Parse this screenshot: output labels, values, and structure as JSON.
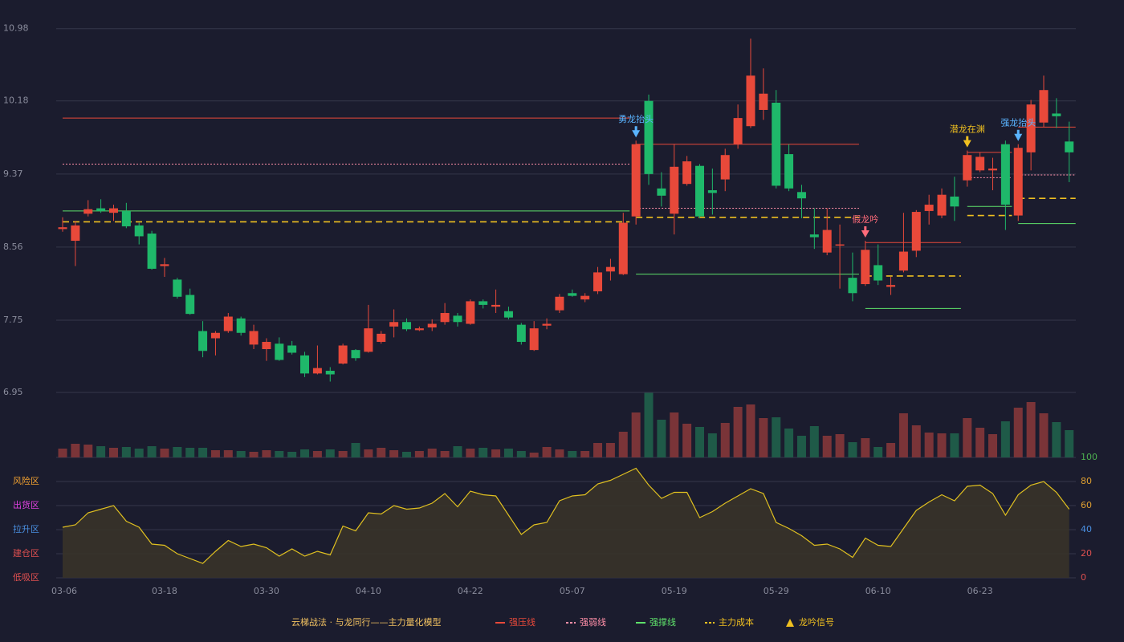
{
  "chart_data": [
    {
      "type": "candlestick",
      "categories": [
        "03-06",
        null,
        null,
        null,
        null,
        null,
        null,
        null,
        "03-18",
        null,
        null,
        null,
        null,
        null,
        null,
        null,
        "03-30",
        null,
        null,
        null,
        null,
        null,
        null,
        null,
        "04-10",
        null,
        null,
        null,
        null,
        null,
        null,
        null,
        "04-22",
        null,
        null,
        null,
        null,
        null,
        null,
        null,
        "05-07",
        null,
        null,
        null,
        null,
        null,
        null,
        null,
        "05-19",
        null,
        null,
        null,
        null,
        null,
        null,
        null,
        "05-29",
        null,
        null,
        null,
        null,
        null,
        null,
        null,
        "06-10",
        null,
        null,
        null,
        null,
        null,
        null,
        null,
        "06-23",
        null,
        null,
        null,
        null,
        null,
        null,
        null
      ],
      "open": [
        8.76,
        8.63,
        8.93,
        8.99,
        8.94,
        8.96,
        8.8,
        8.71,
        8.35,
        8.2,
        8.03,
        7.63,
        7.55,
        7.63,
        7.77,
        7.48,
        7.43,
        7.49,
        7.47,
        7.36,
        7.16,
        7.19,
        7.27,
        7.42,
        7.4,
        7.51,
        7.68,
        7.73,
        7.64,
        7.67,
        7.73,
        7.8,
        7.71,
        7.96,
        7.9,
        7.85,
        7.7,
        7.42,
        7.69,
        7.86,
        8.05,
        7.98,
        8.07,
        8.29,
        8.26,
        8.9,
        10.18,
        9.21,
        8.93,
        9.26,
        9.46,
        9.19,
        9.31,
        9.7,
        9.9,
        10.08,
        10.16,
        9.59,
        9.17,
        8.7,
        8.5,
        8.58,
        8.22,
        8.15,
        8.36,
        8.12,
        8.3,
        8.52,
        8.96,
        8.91,
        9.12,
        9.3,
        9.41,
        9.41,
        9.7,
        8.91,
        9.61,
        9.94,
        10.04,
        9.73
      ],
      "close": [
        8.78,
        8.8,
        8.98,
        8.96,
        8.99,
        8.79,
        8.68,
        8.32,
        8.37,
        8.01,
        7.82,
        7.41,
        7.61,
        7.79,
        7.61,
        7.63,
        7.51,
        7.31,
        7.39,
        7.16,
        7.22,
        7.15,
        7.47,
        7.33,
        7.66,
        7.6,
        7.73,
        7.65,
        7.66,
        7.71,
        7.83,
        7.73,
        7.96,
        7.92,
        7.92,
        7.78,
        7.51,
        7.66,
        7.71,
        8.01,
        8.02,
        8.02,
        8.28,
        8.34,
        8.83,
        9.7,
        9.37,
        9.13,
        9.45,
        9.51,
        8.9,
        9.16,
        9.58,
        9.99,
        10.46,
        10.26,
        9.24,
        9.21,
        9.1,
        8.67,
        8.75,
        8.59,
        8.05,
        8.53,
        8.19,
        8.14,
        8.51,
        8.95,
        9.03,
        9.14,
        9.01,
        9.58,
        9.56,
        9.43,
        9.03,
        9.66,
        10.14,
        10.3,
        10.01,
        9.61
      ],
      "high": [
        8.89,
        8.85,
        9.08,
        9.09,
        9.03,
        9.05,
        8.83,
        8.74,
        8.44,
        8.22,
        8.1,
        7.74,
        7.63,
        7.83,
        7.79,
        7.7,
        7.55,
        7.56,
        7.52,
        7.4,
        7.47,
        7.23,
        7.49,
        7.43,
        7.92,
        7.63,
        7.87,
        7.77,
        7.68,
        7.76,
        7.94,
        7.83,
        7.98,
        7.98,
        8.09,
        7.9,
        7.72,
        7.74,
        7.77,
        8.04,
        8.09,
        8.05,
        8.34,
        8.43,
        8.94,
        9.74,
        10.25,
        9.39,
        9.7,
        9.57,
        9.48,
        9.43,
        9.65,
        10.14,
        10.87,
        10.54,
        10.3,
        9.7,
        9.25,
        8.99,
        8.99,
        8.81,
        8.5,
        8.63,
        8.59,
        8.23,
        8.94,
        8.97,
        9.14,
        9.21,
        9.34,
        9.63,
        9.61,
        9.55,
        9.74,
        9.7,
        10.19,
        10.46,
        10.21,
        9.95
      ],
      "low": [
        8.73,
        8.35,
        8.9,
        8.94,
        8.85,
        8.77,
        8.59,
        8.31,
        8.23,
        7.99,
        7.81,
        7.34,
        7.36,
        7.61,
        7.58,
        7.43,
        7.3,
        7.3,
        7.37,
        7.12,
        7.15,
        7.07,
        7.26,
        7.3,
        7.39,
        7.49,
        7.56,
        7.63,
        7.63,
        7.63,
        7.7,
        7.68,
        7.7,
        7.88,
        7.83,
        7.76,
        7.48,
        7.41,
        7.65,
        7.83,
        8.01,
        7.95,
        8.04,
        8.19,
        8.25,
        8.81,
        9.25,
        9.01,
        8.7,
        9.24,
        8.88,
        8.92,
        9.18,
        9.65,
        9.88,
        9.97,
        9.21,
        9.18,
        8.88,
        8.54,
        8.47,
        8.1,
        7.96,
        8.13,
        8.14,
        8.03,
        8.28,
        8.45,
        8.81,
        8.88,
        8.85,
        9.23,
        9.39,
        9.19,
        8.75,
        8.85,
        9.41,
        9.89,
        9.88,
        9.28
      ],
      "up_color": "#e8493a",
      "down_color": "#1fb86a",
      "ylim": [
        6.95,
        11.12
      ],
      "yticks": [
        6.95,
        7.75,
        8.56,
        9.37,
        10.18,
        10.98
      ],
      "grid": true,
      "legend_title": "云梯战法 · 与龙同行——主力量化模型",
      "levels": [
        {
          "name": "强压线",
          "color": "#e8493a",
          "dash": "none",
          "segments": [
            {
              "start": 0,
              "end": 44,
              "value": 9.99
            },
            {
              "start": 45,
              "end": 62,
              "value": 9.7
            },
            {
              "start": 63,
              "end": 70,
              "value": 8.61
            },
            {
              "start": 71,
              "end": 74,
              "value": 9.61
            },
            {
              "start": 75,
              "end": 79,
              "value": 9.89
            }
          ]
        },
        {
          "name": "强弱线",
          "color": "#ff8fa8",
          "dash": "2 2",
          "segments": [
            {
              "start": 0,
              "end": 44,
              "value": 9.48
            },
            {
              "start": 45,
              "end": 62,
              "value": 8.99
            },
            {
              "start": 71,
              "end": 74,
              "value": 9.33
            },
            {
              "start": 75,
              "end": 79,
              "value": 9.36
            }
          ]
        },
        {
          "name": "强撑线",
          "color": "#5ee06a",
          "dash": "none",
          "segments": [
            {
              "start": 0,
              "end": 44,
              "value": 8.96
            },
            {
              "start": 45,
              "end": 62,
              "value": 8.26
            },
            {
              "start": 63,
              "end": 70,
              "value": 7.88
            },
            {
              "start": 71,
              "end": 74,
              "value": 9.01
            },
            {
              "start": 75,
              "end": 79,
              "value": 8.82
            }
          ]
        },
        {
          "name": "主力成本",
          "color": "#f0c020",
          "dash": "8 5",
          "segments": [
            {
              "start": 0,
              "end": 44,
              "value": 8.84
            },
            {
              "start": 45,
              "end": 62,
              "value": 8.89
            },
            {
              "start": 63,
              "end": 70,
              "value": 8.24
            },
            {
              "start": 71,
              "end": 74,
              "value": 8.91
            },
            {
              "start": 75,
              "end": 79,
              "value": 9.1
            }
          ]
        }
      ],
      "signal_legend": "龙吟信号",
      "signal_legend_color": "#f0c020",
      "signals": [
        {
          "label": "勇龙抬头",
          "index": 45,
          "color": "#5ab4ff"
        },
        {
          "label": "假龙吟",
          "index": 63,
          "color": "#ff6b7a"
        },
        {
          "label": "潜龙在渊",
          "index": 71,
          "color": "#f0c020"
        },
        {
          "label": "强龙抬头",
          "index": 75,
          "color": "#5ab4ff"
        }
      ]
    },
    {
      "type": "bar",
      "values": [
        11,
        17,
        16,
        14,
        12,
        13,
        11,
        14,
        11,
        13,
        12,
        12,
        9,
        9,
        8,
        7,
        9,
        8,
        7,
        10,
        8,
        10,
        8,
        18,
        10,
        12,
        9,
        7,
        8,
        11,
        8,
        14,
        11,
        12,
        10,
        11,
        8,
        6,
        13,
        10,
        8,
        8,
        18,
        18,
        32,
        56,
        81,
        47,
        56,
        42,
        38,
        30,
        43,
        63,
        66,
        49,
        50,
        36,
        27,
        39,
        27,
        29,
        19,
        24,
        13,
        18,
        55,
        40,
        31,
        30,
        30,
        49,
        37,
        29,
        45,
        62,
        69,
        55,
        44,
        34
      ],
      "up_color": "#7a3438",
      "down_color": "#1f5a48"
    },
    {
      "type": "line",
      "values": [
        42,
        44,
        54,
        57,
        60,
        47,
        42,
        28,
        27,
        20,
        16,
        12,
        22,
        31,
        26,
        28,
        25,
        18,
        24,
        18,
        22,
        19,
        43,
        39,
        54,
        53,
        60,
        57,
        58,
        62,
        70,
        59,
        72,
        69,
        68,
        52,
        36,
        44,
        46,
        64,
        68,
        69,
        78,
        81,
        86,
        91,
        77,
        66,
        71,
        71,
        50,
        55,
        62,
        68,
        74,
        70,
        46,
        41,
        35,
        27,
        28,
        24,
        17,
        33,
        27,
        26,
        41,
        56,
        63,
        69,
        64,
        76,
        77,
        70,
        52,
        69,
        77,
        80,
        71,
        57
      ],
      "color": "#e0c020",
      "fill": "#3a3428",
      "ylim": [
        0,
        100
      ],
      "yticks": [
        0,
        20,
        40,
        60,
        80,
        100
      ],
      "ytick_colors": [
        "#e05050",
        "#e05050",
        "#4a90e2",
        "#e0a030",
        "#e0a030",
        "#4caf50"
      ],
      "zones": [
        {
          "label": "风险区",
          "value": 80,
          "color": "#f0a030"
        },
        {
          "label": "出货区",
          "value": 60,
          "color": "#e040e0"
        },
        {
          "label": "拉升区",
          "value": 40,
          "color": "#4a90e2"
        },
        {
          "label": "建仓区",
          "value": 20,
          "color": "#e05050"
        },
        {
          "label": "低吸区",
          "value": 0,
          "color": "#e05050"
        }
      ]
    }
  ]
}
